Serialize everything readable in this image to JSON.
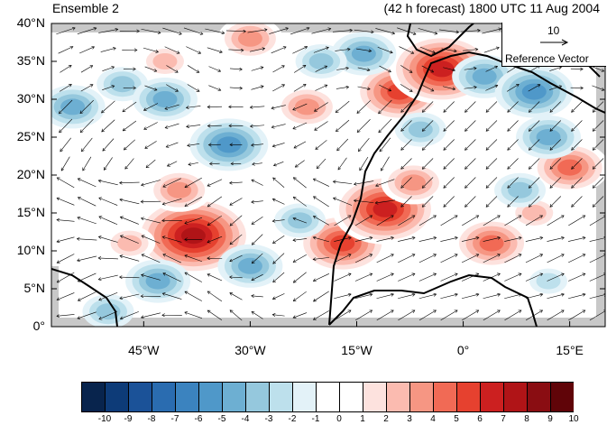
{
  "header": {
    "left_title": "Ensemble 2",
    "right_title": "(42 h forecast) 1800 UTC 11 Aug 2004"
  },
  "map": {
    "lat_labels": [
      "40°N",
      "35°N",
      "30°N",
      "25°N",
      "20°N",
      "15°N",
      "10°N",
      "5°N",
      "0°"
    ],
    "lon_labels": [
      "45°W",
      "30°W",
      "15°W",
      "0°",
      "15°E"
    ],
    "land_color": "#ffffff",
    "missing_color": "#c8c8c8"
  },
  "reference_vector": {
    "value": "10",
    "label": "Reference Vector"
  },
  "colorbar": {
    "labels": [
      "-10",
      "-9",
      "-8",
      "-7",
      "-6",
      "-5",
      "-4",
      "-3",
      "-2",
      "-1",
      "0",
      "1",
      "2",
      "3",
      "4",
      "5",
      "6",
      "7",
      "8",
      "9",
      "10"
    ],
    "colors": [
      "#08244d",
      "#0d3b78",
      "#1b5298",
      "#2a6cb0",
      "#3b83bf",
      "#4f98c9",
      "#6dafd2",
      "#95c8dd",
      "#bde0ec",
      "#e3f2f8",
      "#ffffff",
      "#ffffff",
      "#fde2de",
      "#fbbbb0",
      "#f69683",
      "#f16a55",
      "#e6412f",
      "#cc2020",
      "#b01417",
      "#8a0d12",
      "#600408"
    ]
  },
  "anomalies": [
    {
      "lon": -38,
      "lat": 12,
      "value": 8
    },
    {
      "lon": -40,
      "lat": 18,
      "value": 4
    },
    {
      "lon": -47,
      "lat": 11,
      "value": 3
    },
    {
      "lon": -17,
      "lat": 11,
      "value": 6
    },
    {
      "lon": -11,
      "lat": 15.5,
      "value": 7
    },
    {
      "lon": -7,
      "lat": 19,
      "value": 4
    },
    {
      "lon": -9,
      "lat": 31,
      "value": 6
    },
    {
      "lon": -3,
      "lat": 34,
      "value": 7
    },
    {
      "lon": 4,
      "lat": 11,
      "value": 5
    },
    {
      "lon": 15,
      "lat": 21,
      "value": 5
    },
    {
      "lon": 10,
      "lat": 15,
      "value": 3
    },
    {
      "lon": -22,
      "lat": 29,
      "value": 4
    },
    {
      "lon": -30,
      "lat": 38,
      "value": 4
    },
    {
      "lon": -42,
      "lat": 35,
      "value": 3
    },
    {
      "lon": -55,
      "lat": 29,
      "value": -4
    },
    {
      "lon": -48,
      "lat": 32,
      "value": -3
    },
    {
      "lon": -42,
      "lat": 30,
      "value": -4
    },
    {
      "lon": -33,
      "lat": 24,
      "value": -5
    },
    {
      "lon": -30,
      "lat": 8,
      "value": -4
    },
    {
      "lon": -43,
      "lat": 6,
      "value": -4
    },
    {
      "lon": -50,
      "lat": 2,
      "value": -3
    },
    {
      "lon": -14,
      "lat": 36,
      "value": -4
    },
    {
      "lon": -20,
      "lat": 35,
      "value": -3
    },
    {
      "lon": 3,
      "lat": 33,
      "value": -4
    },
    {
      "lon": 10,
      "lat": 31,
      "value": -5
    },
    {
      "lon": 12,
      "lat": 25,
      "value": -4
    },
    {
      "lon": 8,
      "lat": 18,
      "value": -3
    },
    {
      "lon": -6,
      "lat": 26,
      "value": -3
    },
    {
      "lon": -23,
      "lat": 14,
      "value": -3
    },
    {
      "lon": 12,
      "lat": 6,
      "value": -2
    }
  ]
}
